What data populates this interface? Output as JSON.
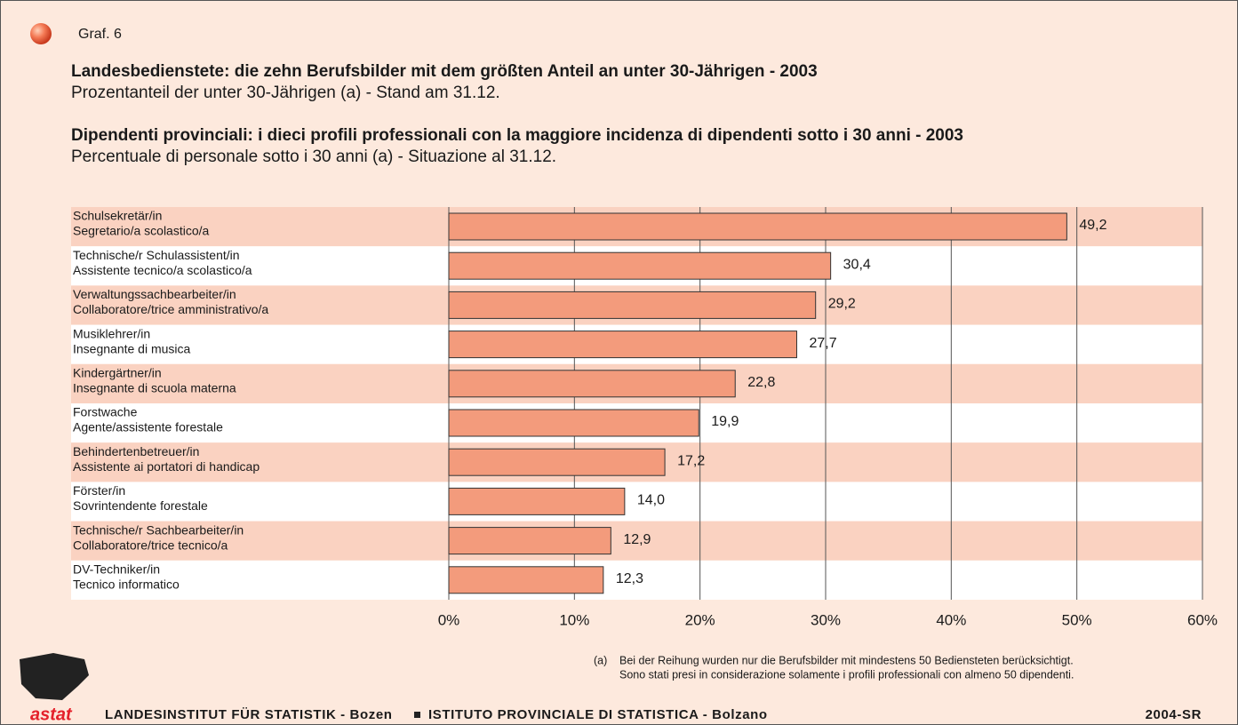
{
  "chart_data": {
    "type": "bar",
    "label": "Graf. 6",
    "titles": [
      {
        "title": "Landesbedienstete: die zehn Berufsbilder mit dem größten Anteil an unter 30-Jährigen - 2003",
        "subtitle": "Prozentanteil der unter 30-Jährigen (a) - Stand am 31.12."
      },
      {
        "title": "Dipendenti provinciali: i dieci profili professionali con la maggiore incidenza di dipendenti sotto i 30 anni - 2003",
        "subtitle": "Percentuale di personale sotto i 30 anni (a) - Situazione al 31.12."
      }
    ],
    "categories": [
      [
        "Schulsekretär/in",
        "Segretario/a scolastico/a"
      ],
      [
        "Technische/r Schulassistent/in",
        "Assistente tecnico/a scolastico/a"
      ],
      [
        "Verwaltungssachbearbeiter/in",
        "Collaboratore/trice amministrativo/a"
      ],
      [
        "Musiklehrer/in",
        "Insegnante di musica"
      ],
      [
        "Kindergärtner/in",
        "Insegnante di scuola materna"
      ],
      [
        "Forstwache",
        "Agente/assistente forestale"
      ],
      [
        "Behindertenbetreuer/in",
        "Assistente ai portatori di handicap"
      ],
      [
        "Förster/in",
        "Sovrintendente forestale"
      ],
      [
        "Technische/r Sachbearbeiter/in",
        "Collaboratore/trice tecnico/a"
      ],
      [
        "DV-Techniker/in",
        "Tecnico informatico"
      ]
    ],
    "values": [
      49.2,
      30.4,
      29.2,
      27.7,
      22.8,
      19.9,
      17.2,
      14.0,
      12.9,
      12.3
    ],
    "value_labels": [
      "49,2",
      "30,4",
      "29,2",
      "27,7",
      "22,8",
      "19,9",
      "17,2",
      "14,0",
      "12,9",
      "12,3"
    ],
    "color": "#f39b7c",
    "xlim": [
      0,
      60
    ],
    "xticks": [
      {
        "value": 0,
        "label": "0%"
      },
      {
        "value": 10,
        "label": "10%"
      },
      {
        "value": 20,
        "label": "20%"
      },
      {
        "value": 30,
        "label": "30%"
      },
      {
        "value": 40,
        "label": "40%"
      },
      {
        "value": 50,
        "label": "50%"
      },
      {
        "value": 60,
        "label": "60%"
      }
    ],
    "grid": true,
    "footnote": {
      "marker": "(a)",
      "lines": [
        "Bei der Reihung wurden nur die Berufsbilder mit mindestens 50 Bediensteten berücksichtigt.",
        "Sono stati presi in considerazione solamente i profili professionali con almeno 50 dipendenti."
      ]
    }
  },
  "footer": {
    "logo": "astat",
    "institute_de": "LANDESINSTITUT FÜR STATISTIK - Bozen",
    "institute_it": "ISTITUTO PROVINCIALE DI STATISTICA - Bolzano",
    "code": "2004-SR"
  }
}
